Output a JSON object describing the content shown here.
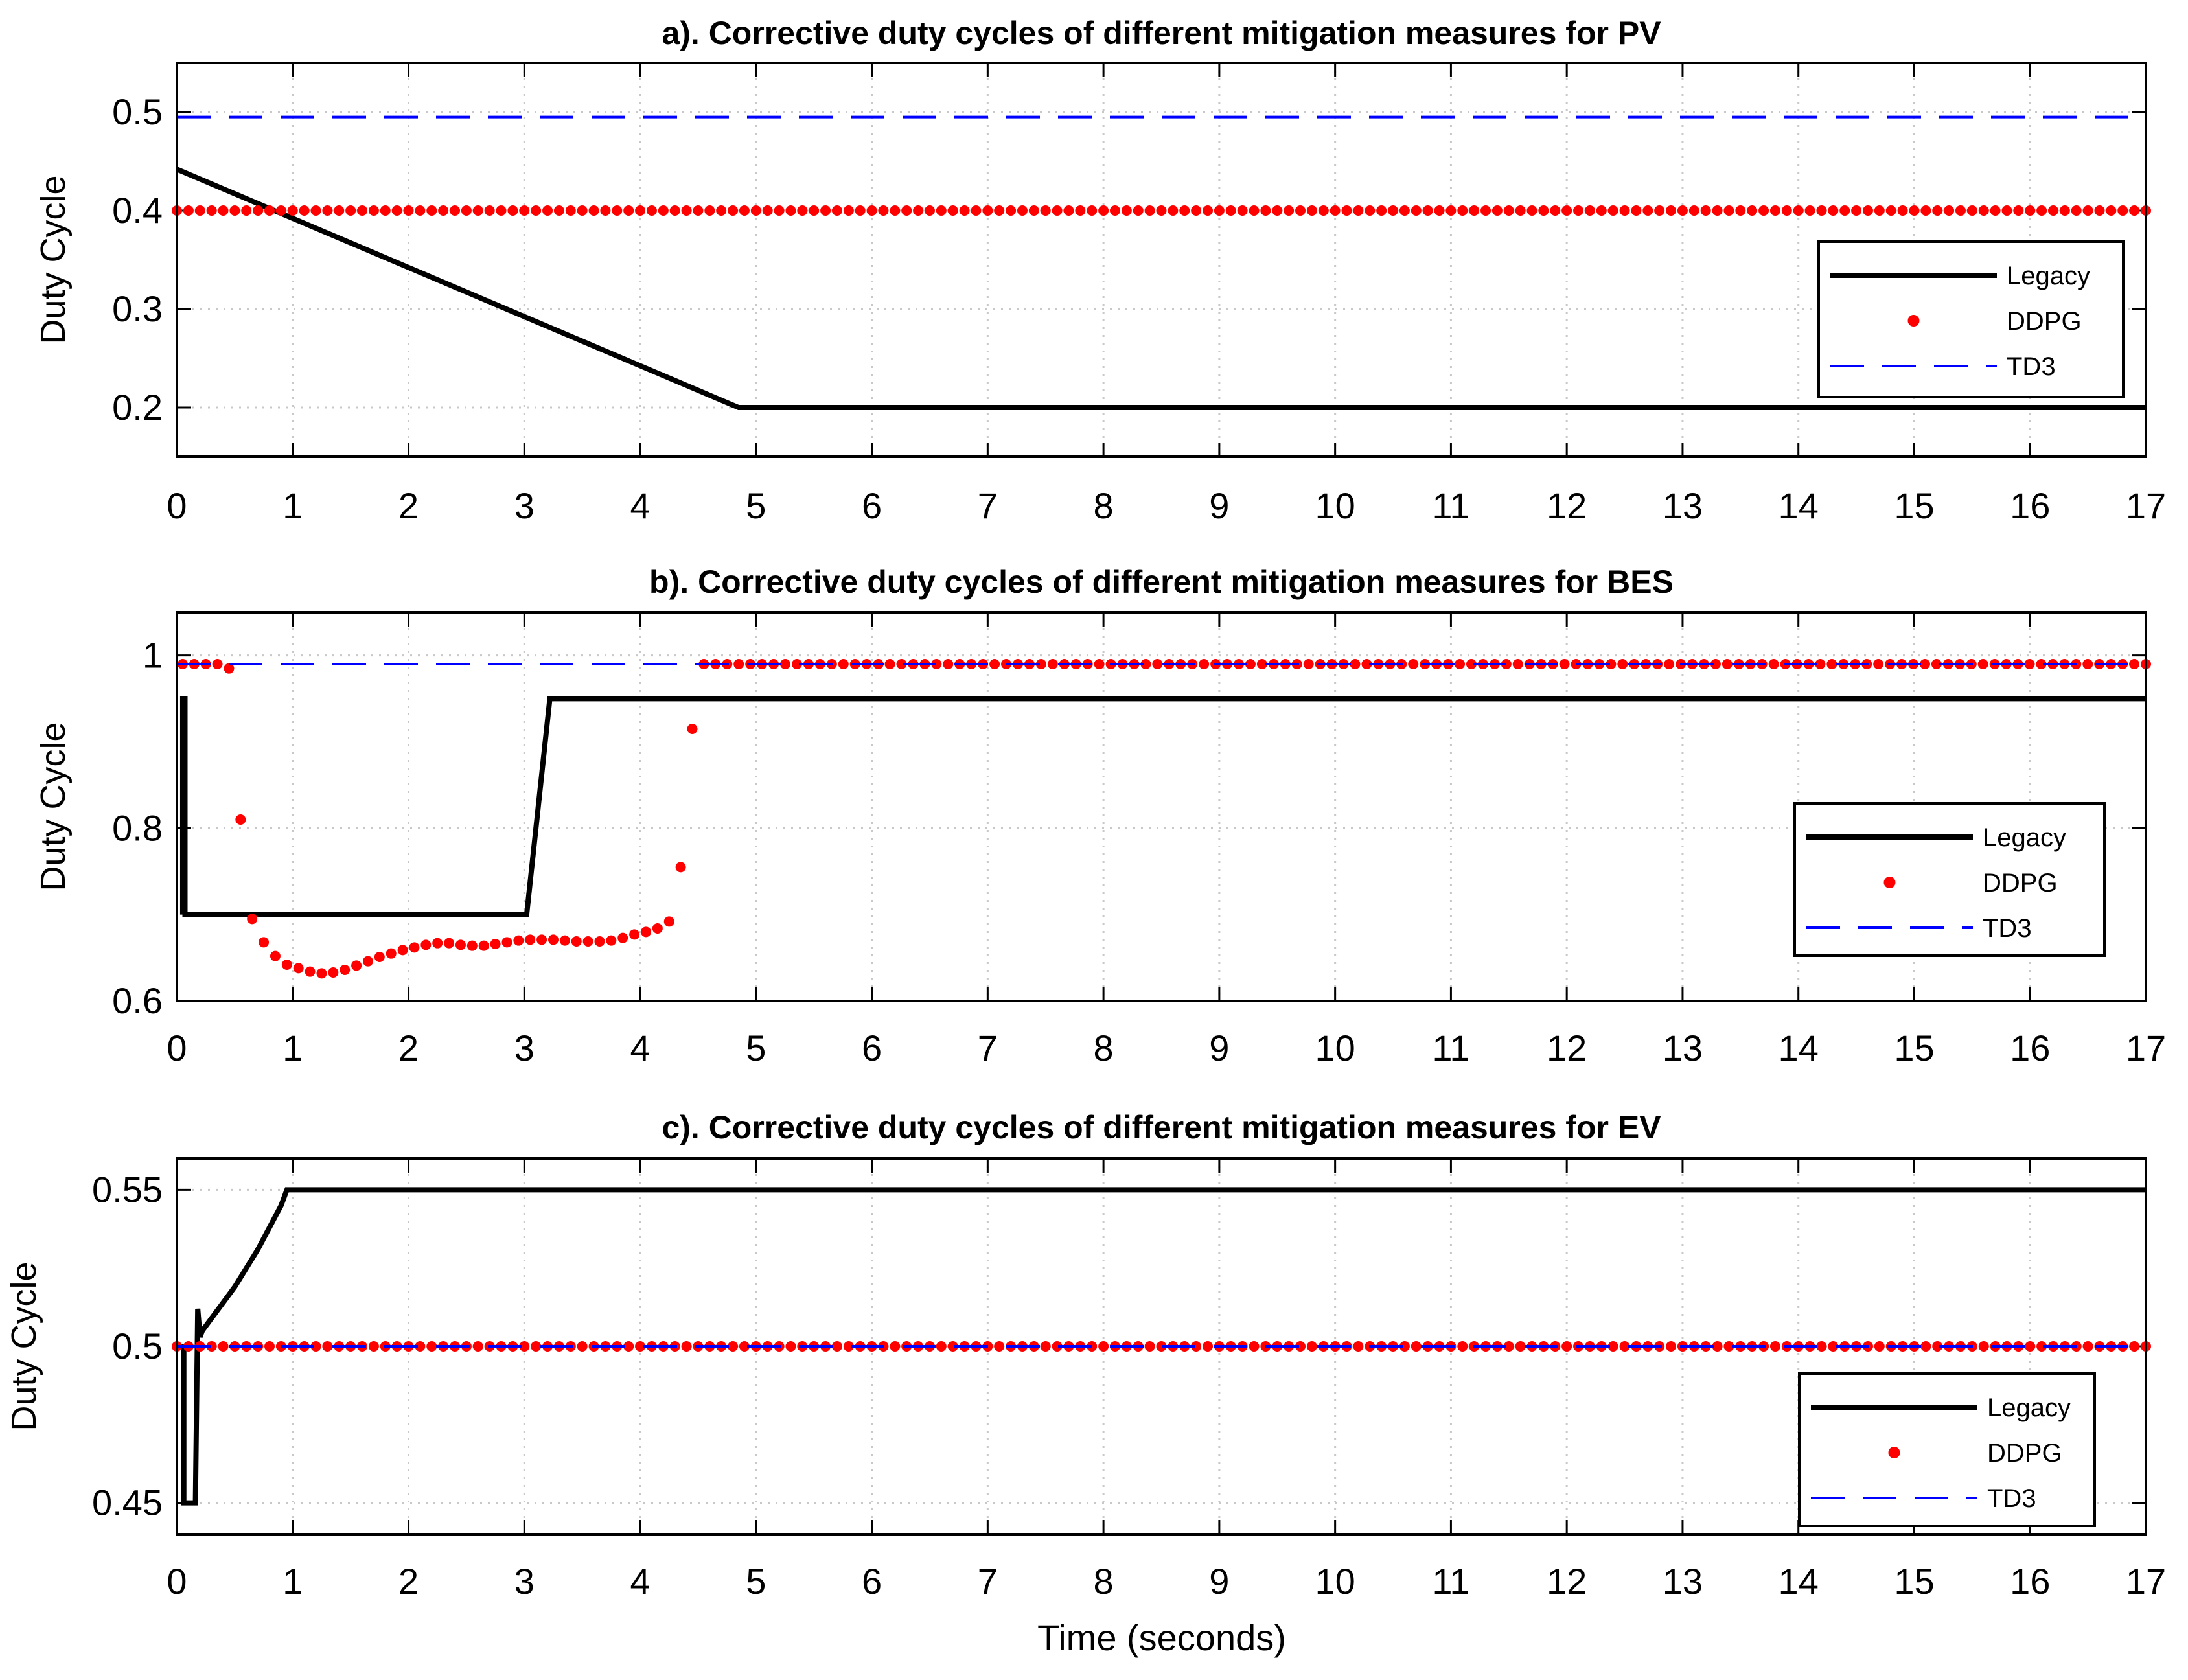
{
  "xlabel": "Time (seconds)",
  "colors": {
    "legacy": "#000000",
    "ddpg": "#ff0000",
    "td3": "#0000ff",
    "grid": "#c8c8c8"
  },
  "chart_data": [
    {
      "type": "line",
      "title": "a). Corrective duty cycles of different mitigation measures for  PV",
      "xlabel": "",
      "ylabel": "Duty Cycle",
      "xlim": [
        0,
        17
      ],
      "ylim": [
        0.15,
        0.55
      ],
      "xticks": [
        0,
        1,
        2,
        3,
        4,
        5,
        6,
        7,
        8,
        9,
        10,
        11,
        12,
        13,
        14,
        15,
        16,
        17
      ],
      "yticks": [
        0.2,
        0.3,
        0.4,
        0.5
      ],
      "ytick_labels": [
        "0.2",
        "0.3",
        "0.4",
        "0.5"
      ],
      "grid": true,
      "legend_position": "right",
      "series": [
        {
          "name": "Legacy",
          "style": "solid",
          "x": [
            0,
            4.85,
            17
          ],
          "y": [
            0.442,
            0.2,
            0.2
          ]
        },
        {
          "name": "DDPG",
          "style": "dots",
          "x_range": [
            0,
            17
          ],
          "y_const": 0.4
        },
        {
          "name": "TD3",
          "style": "dashed",
          "x": [
            0,
            17
          ],
          "y": [
            0.495,
            0.495
          ]
        }
      ]
    },
    {
      "type": "line",
      "title": "b). Corrective duty cycles of different mitigation measures for BES",
      "xlabel": "",
      "ylabel": "Duty Cycle",
      "xlim": [
        0,
        17
      ],
      "ylim": [
        0.6,
        1.05
      ],
      "xticks": [
        0,
        1,
        2,
        3,
        4,
        5,
        6,
        7,
        8,
        9,
        10,
        11,
        12,
        13,
        14,
        15,
        16,
        17
      ],
      "yticks": [
        0.6,
        0.8,
        1.0
      ],
      "ytick_labels": [
        "0.6",
        "0.8",
        "1"
      ],
      "grid": true,
      "legend_position": "right",
      "series": [
        {
          "name": "Legacy",
          "style": "solid",
          "x": [
            0.05,
            0.05,
            0.07,
            0.07,
            3.02,
            3.22,
            17
          ],
          "y": [
            0.7,
            0.95,
            0.95,
            0.7,
            0.7,
            0.95,
            0.95
          ]
        },
        {
          "name": "DDPG",
          "style": "dots",
          "x": [
            0.05,
            0.15,
            0.25,
            0.35,
            0.45,
            0.55,
            0.65,
            0.75,
            0.85,
            0.95,
            1.05,
            1.15,
            1.25,
            1.35,
            1.45,
            1.55,
            1.65,
            1.75,
            1.85,
            1.95,
            2.05,
            2.15,
            2.25,
            2.35,
            2.45,
            2.55,
            2.65,
            2.75,
            2.85,
            2.95,
            3.05,
            3.15,
            3.25,
            3.35,
            3.45,
            3.55,
            3.65,
            3.75,
            3.85,
            3.95,
            4.05,
            4.15,
            4.25,
            4.35,
            4.45
          ],
          "y": [
            0.99,
            0.99,
            0.99,
            0.99,
            0.985,
            0.81,
            0.695,
            0.668,
            0.652,
            0.642,
            0.638,
            0.634,
            0.632,
            0.633,
            0.636,
            0.641,
            0.646,
            0.651,
            0.655,
            0.659,
            0.662,
            0.665,
            0.667,
            0.667,
            0.665,
            0.664,
            0.664,
            0.666,
            0.668,
            0.67,
            0.671,
            0.671,
            0.671,
            0.67,
            0.669,
            0.669,
            0.669,
            0.67,
            0.673,
            0.677,
            0.68,
            0.684,
            0.692,
            0.755,
            0.915
          ],
          "x_range_after": [
            4.55,
            17
          ],
          "y_const_after": 0.99
        },
        {
          "name": "TD3",
          "style": "dashed",
          "x": [
            0,
            17
          ],
          "y": [
            0.99,
            0.99
          ]
        }
      ]
    },
    {
      "type": "line",
      "title": "c).  Corrective duty cycles of different mitigation measures for EV",
      "xlabel": "Time (seconds)",
      "ylabel": "Duty Cycle",
      "xlim": [
        0,
        17
      ],
      "ylim": [
        0.44,
        0.56
      ],
      "xticks": [
        0,
        1,
        2,
        3,
        4,
        5,
        6,
        7,
        8,
        9,
        10,
        11,
        12,
        13,
        14,
        15,
        16,
        17
      ],
      "yticks": [
        0.45,
        0.5,
        0.55
      ],
      "ytick_labels": [
        "0.45",
        "0.5",
        "0.55"
      ],
      "grid": true,
      "legend_position": "bottom-right",
      "series": [
        {
          "name": "Legacy",
          "style": "solid",
          "x": [
            0.02,
            0.04,
            0.06,
            0.06,
            0.16,
            0.18,
            0.2,
            0.22,
            0.3,
            0.4,
            0.5,
            0.6,
            0.7,
            0.8,
            0.9,
            0.95,
            17
          ],
          "y": [
            0.5,
            0.5,
            0.5,
            0.45,
            0.45,
            0.512,
            0.503,
            0.505,
            0.509,
            0.514,
            0.519,
            0.525,
            0.531,
            0.538,
            0.545,
            0.55,
            0.55
          ]
        },
        {
          "name": "DDPG",
          "style": "dots",
          "x_range": [
            0,
            17
          ],
          "y_const": 0.5
        },
        {
          "name": "TD3",
          "style": "dashed",
          "x": [
            0,
            17
          ],
          "y": [
            0.5,
            0.5
          ]
        }
      ]
    }
  ]
}
